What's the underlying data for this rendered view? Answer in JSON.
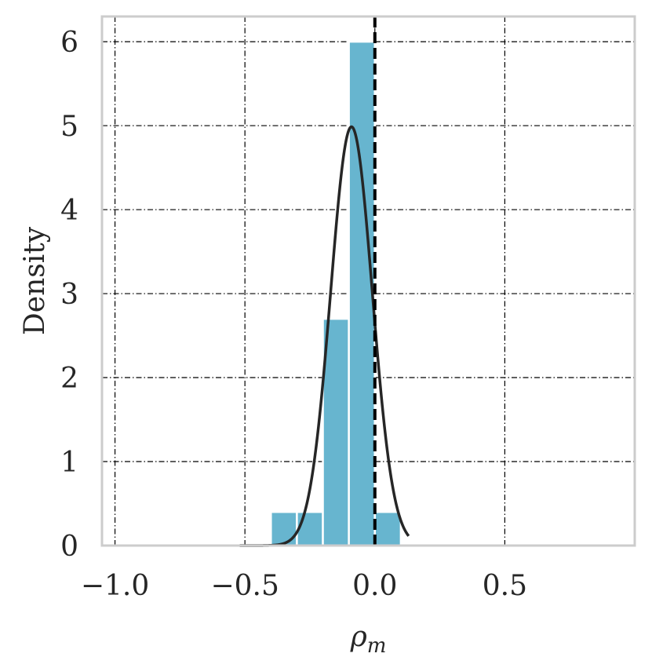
{
  "chart_data": {
    "type": "bar",
    "subtype": "histogram-with-density-curve",
    "xlabel": "ρ",
    "xlabel_subscript": "m",
    "ylabel": "Density",
    "xlim": [
      -1.05,
      1.0
    ],
    "ylim": [
      0,
      6.3
    ],
    "x_ticks": [
      -1.0,
      -0.5,
      0.0,
      0.5
    ],
    "x_tick_labels": [
      "−1.0",
      "−0.5",
      "0.0",
      "0.5"
    ],
    "y_ticks": [
      0,
      1,
      2,
      3,
      4,
      5,
      6
    ],
    "y_tick_labels": [
      "0",
      "1",
      "2",
      "3",
      "4",
      "5",
      "6"
    ],
    "grid": true,
    "bins": [
      {
        "x0": -0.4,
        "x1": -0.3,
        "density": 0.4
      },
      {
        "x0": -0.3,
        "x1": -0.2,
        "density": 0.4
      },
      {
        "x0": -0.2,
        "x1": -0.1,
        "density": 2.7
      },
      {
        "x0": -0.1,
        "x1": 0.0,
        "density": 6.0
      },
      {
        "x0": 0.0,
        "x1": 0.1,
        "density": 0.4
      }
    ],
    "density_curve": {
      "type": "normal",
      "mean": -0.09,
      "std": 0.08,
      "x_range": [
        -0.52,
        0.13
      ]
    },
    "reference_line": {
      "x": 0.0,
      "style": "dashed"
    },
    "colors": {
      "bar": "#67b5cf",
      "curve": "#262626",
      "reference": "#000000",
      "grid": "#000000",
      "frame": "#cccccc"
    }
  }
}
